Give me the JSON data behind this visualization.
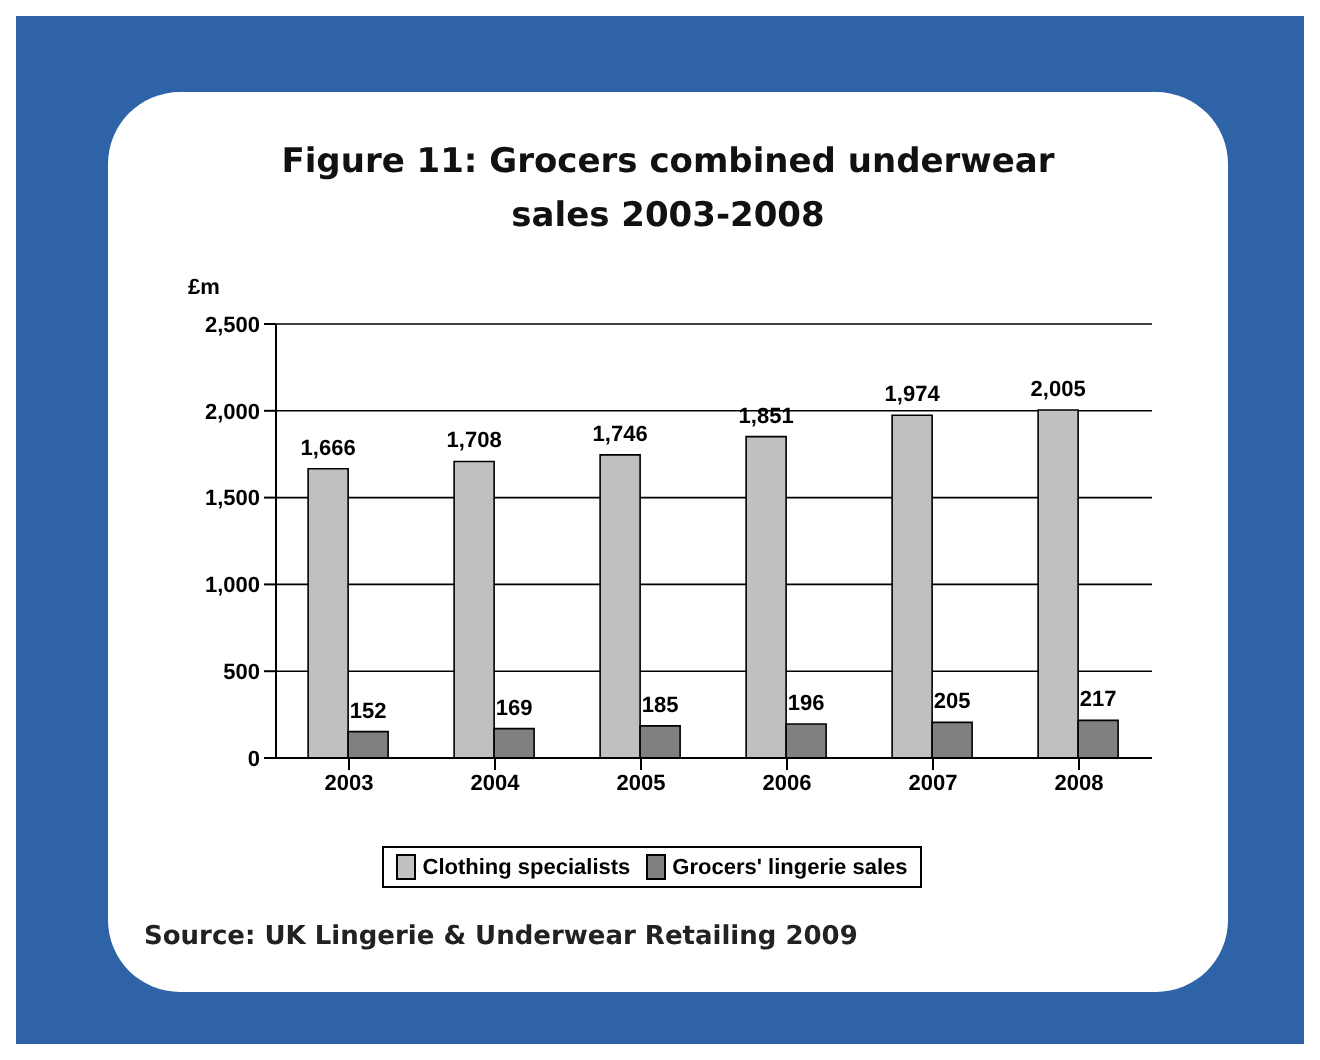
{
  "chart_data": {
    "type": "bar",
    "title": "Figure 11: Grocers combined underwear sales 2003-2008",
    "ylabel": "£m",
    "categories": [
      "2003",
      "2004",
      "2005",
      "2006",
      "2007",
      "2008"
    ],
    "series": [
      {
        "name": "Clothing specialists",
        "color": "#c0c0c0",
        "values": [
          1666,
          1708,
          1746,
          1851,
          1974,
          2005
        ],
        "value_labels": [
          "1,666",
          "1,708",
          "1,746",
          "1,851",
          "1,974",
          "2,005"
        ]
      },
      {
        "name": "Grocers' lingerie sales",
        "color": "#808080",
        "values": [
          152,
          169,
          185,
          196,
          205,
          217
        ],
        "value_labels": [
          "152",
          "169",
          "185",
          "196",
          "205",
          "217"
        ]
      }
    ],
    "ylim": [
      0,
      2500
    ],
    "yticks": [
      0,
      500,
      {
        "value": 1000,
        "label": "1,000"
      },
      {
        "value": 1500,
        "label": "1,500"
      },
      {
        "value": 2000,
        "label": "2,000"
      },
      {
        "value": 2500,
        "label": "2,500"
      }
    ],
    "grid": "y",
    "legend": "bottom",
    "annotations": [
      "Source: UK Lingerie & Underwear Retailing 2009"
    ]
  }
}
